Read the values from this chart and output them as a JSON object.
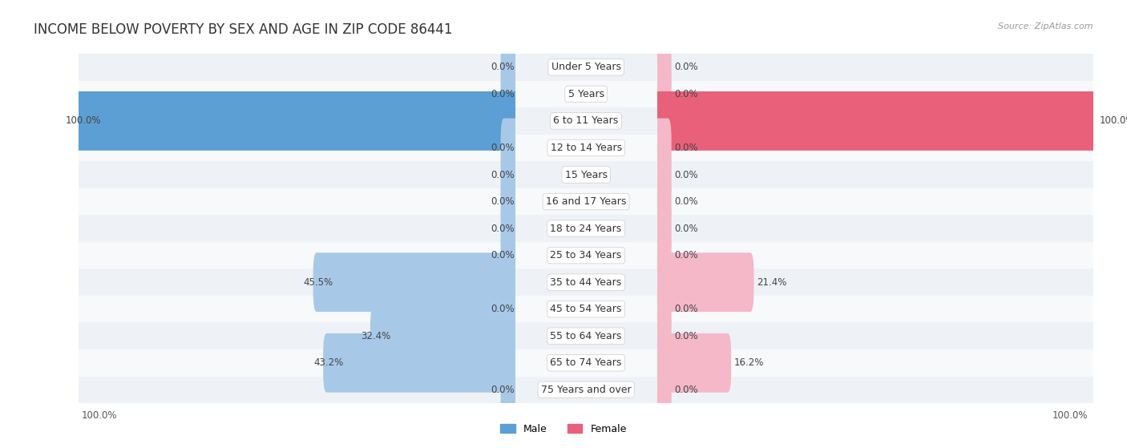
{
  "title": "INCOME BELOW POVERTY BY SEX AND AGE IN ZIP CODE 86441",
  "source": "Source: ZipAtlas.com",
  "categories": [
    "Under 5 Years",
    "5 Years",
    "6 to 11 Years",
    "12 to 14 Years",
    "15 Years",
    "16 and 17 Years",
    "18 to 24 Years",
    "25 to 34 Years",
    "35 to 44 Years",
    "45 to 54 Years",
    "55 to 64 Years",
    "65 to 74 Years",
    "75 Years and over"
  ],
  "male_values": [
    0.0,
    0.0,
    100.0,
    0.0,
    0.0,
    0.0,
    0.0,
    0.0,
    45.5,
    0.0,
    32.4,
    43.2,
    0.0
  ],
  "female_values": [
    0.0,
    0.0,
    100.0,
    0.0,
    0.0,
    0.0,
    0.0,
    0.0,
    21.4,
    0.0,
    0.0,
    16.2,
    0.0
  ],
  "male_color": "#a8c8e8",
  "female_color": "#f4b8c8",
  "male_color_full": "#5b9fd4",
  "female_color_full": "#e8607a",
  "row_bg_color_odd": "#eef2f7",
  "row_bg_color_even": "#f8f9fb",
  "max_value": 100.0,
  "legend_male_color": "#5b9fd4",
  "legend_female_color": "#e8607a",
  "title_fontsize": 12,
  "label_fontsize": 9,
  "value_fontsize": 8.5
}
